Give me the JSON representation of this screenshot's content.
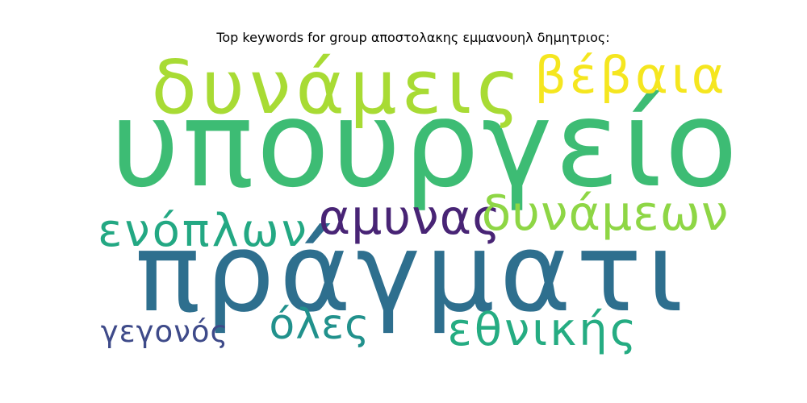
{
  "chart_data": {
    "type": "wordcloud",
    "title": "Top keywords for group αποστολακης εμμανουηλ δημητριος:",
    "words": [
      {
        "text": "υπουργείο",
        "weight": 1.0,
        "color": "#3dbc74"
      },
      {
        "text": "πράγματι",
        "weight": 0.98,
        "color": "#2e6f8e"
      },
      {
        "text": "δυνάμεις",
        "weight": 0.62,
        "color": "#a8db34"
      },
      {
        "text": "βέβαια",
        "weight": 0.42,
        "color": "#f5e61f"
      },
      {
        "text": "αμυνας",
        "weight": 0.43,
        "color": "#482475"
      },
      {
        "text": "δυνάμεων",
        "weight": 0.44,
        "color": "#8ed645"
      },
      {
        "text": "ενόπλων",
        "weight": 0.4,
        "color": "#23a883"
      },
      {
        "text": "όλες",
        "weight": 0.36,
        "color": "#21918c"
      },
      {
        "text": "εθνικής",
        "weight": 0.38,
        "color": "#25ac82"
      },
      {
        "text": "γεγονός",
        "weight": 0.27,
        "color": "#3e4a89"
      }
    ]
  }
}
